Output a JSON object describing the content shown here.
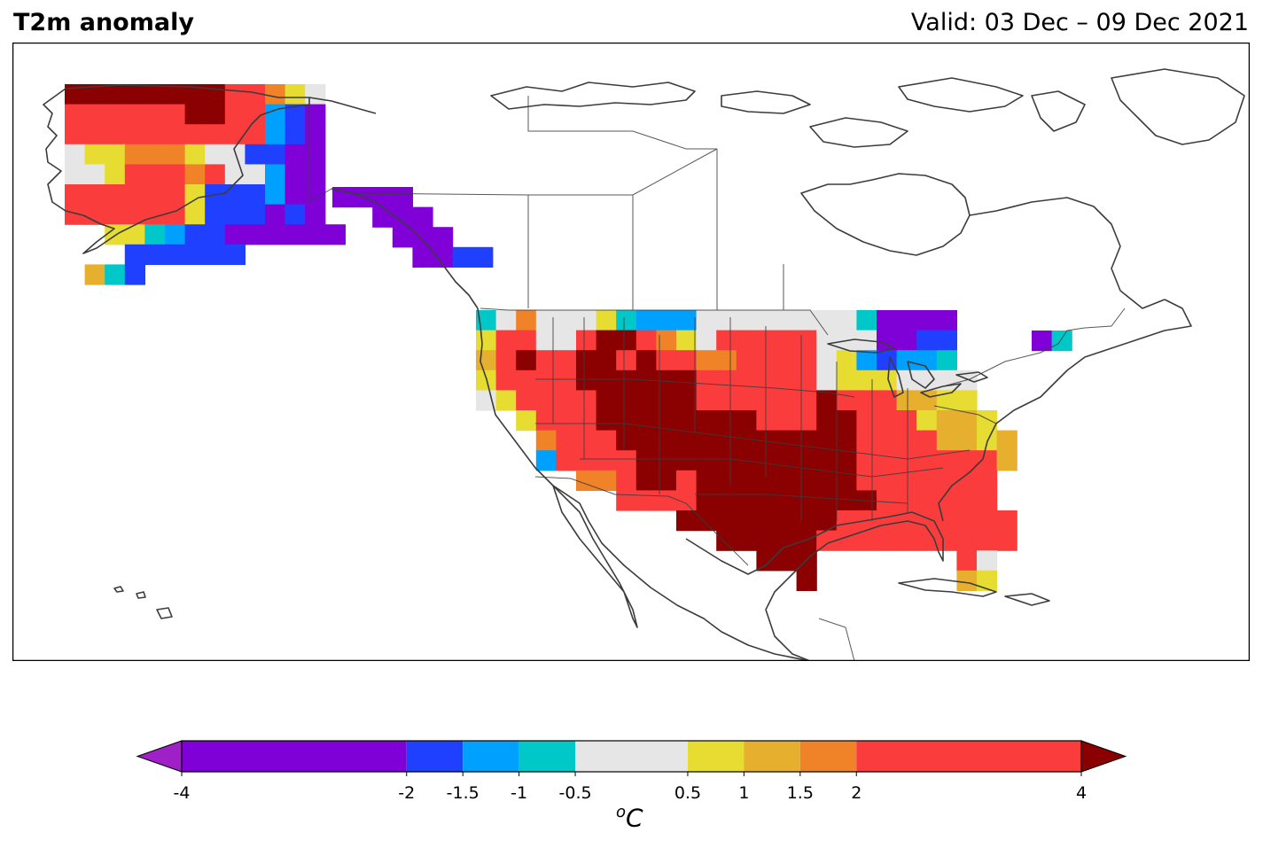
{
  "header": {
    "title": "T2m anomaly",
    "valid": "Valid: 03 Dec – 09 Dec 2021"
  },
  "colorbar": {
    "unit": "C",
    "unit_superscript": "o",
    "extend": "both",
    "boundaries": [
      -4,
      -2,
      -1.5,
      -1,
      -0.5,
      0.5,
      1,
      1.5,
      2,
      4
    ],
    "tick_labels": [
      "-4",
      "-2",
      "-1.5",
      "-1",
      "-0.5",
      "0.5",
      "1",
      "1.5",
      "2",
      "4"
    ],
    "colors": [
      "#8000d8",
      "#2040ff",
      "#00a0ff",
      "#00c8c8",
      "#e6e6e6",
      "#e6dc32",
      "#e6af2d",
      "#f08228",
      "#fa3c3c"
    ],
    "under_color": "#a020c8",
    "over_color": "#8b0000"
  },
  "map": {
    "projection": "lat-lon",
    "region": "North America",
    "colors": {
      "coast": "#3c3c3c",
      "border": "#3c3c3c",
      "land": "#ffffff",
      "ocean": "#ffffff"
    }
  }
}
